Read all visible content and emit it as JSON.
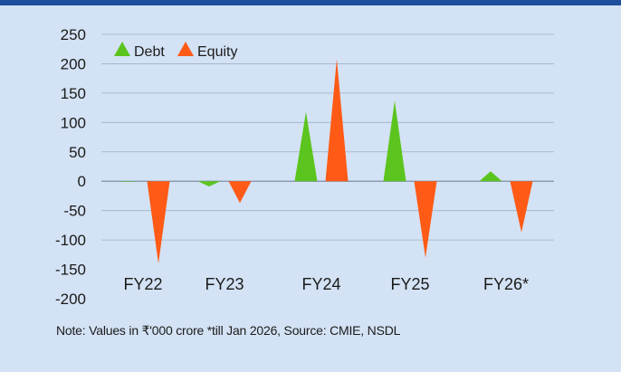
{
  "chart_data": {
    "type": "bar",
    "categories": [
      "FY22",
      "FY23",
      "FY24",
      "FY25",
      "FY26*"
    ],
    "series": [
      {
        "name": "Debt",
        "values": [
          -1,
          -9,
          118,
          137,
          17
        ],
        "color": "#5cc41e"
      },
      {
        "name": "Equity",
        "values": [
          -140,
          -37,
          208,
          -130,
          -87
        ],
        "color": "#ff5a16"
      }
    ],
    "mark_shape": "triangle",
    "ylim": [
      -200,
      250
    ],
    "yticks": [
      250,
      200,
      150,
      100,
      50,
      0,
      -50,
      -100,
      -150,
      -200
    ],
    "title": "",
    "xlabel": "",
    "ylabel": "",
    "grid": "horizontal",
    "legend_position": "top-left"
  },
  "colors": {
    "background": "#d3e2f4",
    "top_bar": "#1c4f9c",
    "grid": "#9fb1c8",
    "zero_line": "#7d8fa8",
    "text": "#1b1b1b"
  },
  "note": "Note: Values in ₹'000 crore *till Jan 2026, Source: CMIE, NSDL"
}
